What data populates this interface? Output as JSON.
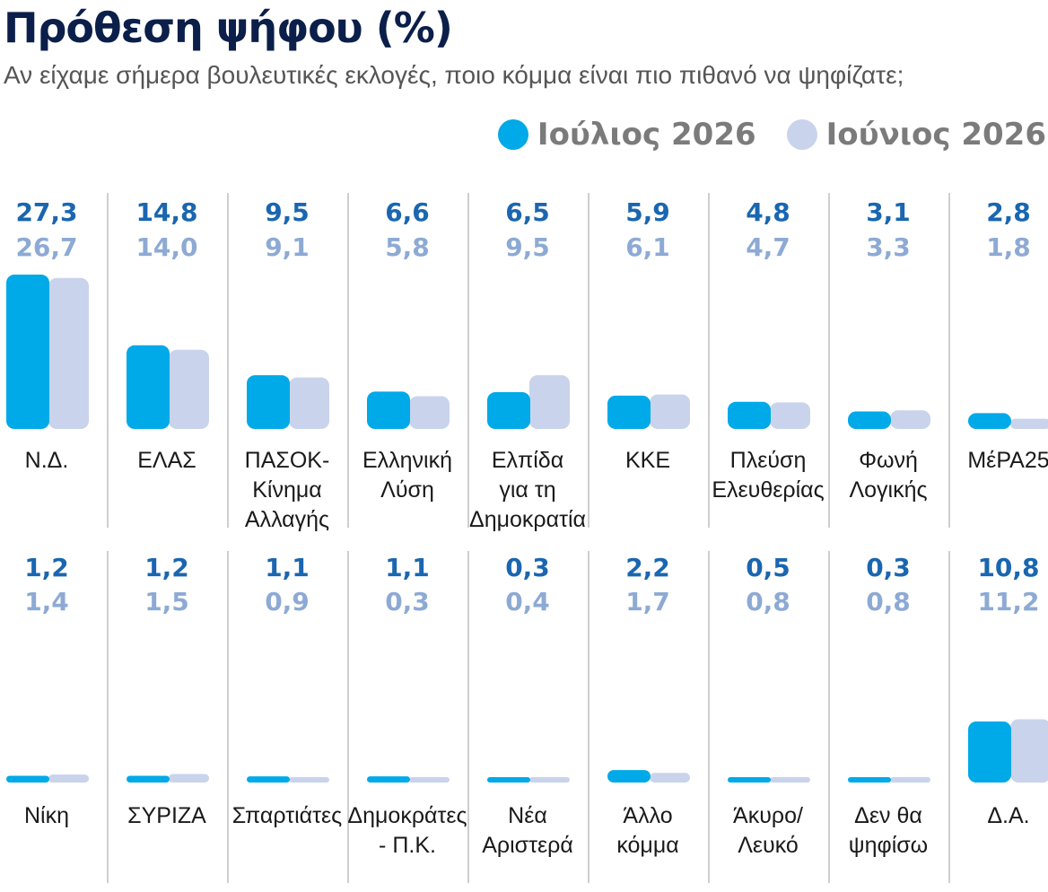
{
  "header": {
    "title": "Πρόθεση ψήφου (%)",
    "subtitle": "Αν είχαμε σήμερα βουλευτικές εκλογές, ποιο κόμμα είναι πιο πιθανό να ψηφίζατε;"
  },
  "legend": [
    {
      "label": "Ιούλιος 2026",
      "color": "#00a9e8"
    },
    {
      "label": "Ιούνιος 2026",
      "color": "#c9d3ec"
    }
  ],
  "chart_data": {
    "type": "bar",
    "title": "Πρόθεση ψήφου (%)",
    "subtitle": "Αν είχαμε σήμερα βουλευτικές εκλογές, ποιο κόμμα είναι πιο πιθανό να ψηφίζατε;",
    "legend_position": "top-right",
    "grid": false,
    "ylim": [
      0,
      28
    ],
    "series": [
      {
        "name": "Ιούλιος 2026",
        "color": "#00a9e8",
        "label_color": "#1a66b0"
      },
      {
        "name": "Ιούνιος 2026",
        "color": "#c9d3ec",
        "label_color": "#8daad4"
      }
    ],
    "rows": [
      {
        "categories": [
          [
            "Ν.Δ."
          ],
          [
            "ΕΛΑΣ"
          ],
          [
            "ΠΑΣΟΚ-",
            "Κίνημα",
            "Αλλαγής"
          ],
          [
            "Ελληνική",
            "Λύση"
          ],
          [
            "Ελπίδα",
            "για τη",
            "Δημοκρατία"
          ],
          [
            "ΚΚΕ"
          ],
          [
            "Πλεύση",
            "Ελευθερίας"
          ],
          [
            "Φωνή",
            "Λογικής"
          ],
          [
            "ΜέΡΑ25"
          ]
        ],
        "values_july": [
          27.3,
          14.8,
          9.5,
          6.6,
          6.5,
          5.9,
          4.8,
          3.1,
          2.8
        ],
        "values_june": [
          26.7,
          14.0,
          9.1,
          5.8,
          9.5,
          6.1,
          4.7,
          3.3,
          1.8
        ],
        "labels_july": [
          "27,3",
          "14,8",
          "9,5",
          "6,6",
          "6,5",
          "5,9",
          "4,8",
          "3,1",
          "2,8"
        ],
        "labels_june": [
          "26,7",
          "14,0",
          "9,1",
          "5,8",
          "9,5",
          "6,1",
          "4,7",
          "3,3",
          "1,8"
        ]
      },
      {
        "categories": [
          [
            "Νίκη"
          ],
          [
            "ΣΥΡΙΖΑ"
          ],
          [
            "Σπαρτιάτες"
          ],
          [
            "Δημοκράτες",
            "- Π.Κ."
          ],
          [
            "Νέα",
            "Αριστερά"
          ],
          [
            "Άλλο",
            "κόμμα"
          ],
          [
            "Άκυρο/",
            "Λευκό"
          ],
          [
            "Δεν θα",
            "ψηφίσω"
          ],
          [
            "Δ.Α."
          ]
        ],
        "values_july": [
          1.2,
          1.2,
          1.1,
          1.1,
          0.3,
          2.2,
          0.5,
          0.3,
          10.8
        ],
        "values_june": [
          1.4,
          1.5,
          0.9,
          0.3,
          0.4,
          1.7,
          0.8,
          0.8,
          11.2
        ],
        "labels_july": [
          "1,2",
          "1,2",
          "1,1",
          "1,1",
          "0,3",
          "2,2",
          "0,5",
          "0,3",
          "10,8"
        ],
        "labels_june": [
          "1,4",
          "1,5",
          "0,9",
          "0,3",
          "0,4",
          "1,7",
          "0,8",
          "0,8",
          "11,2"
        ]
      }
    ]
  }
}
